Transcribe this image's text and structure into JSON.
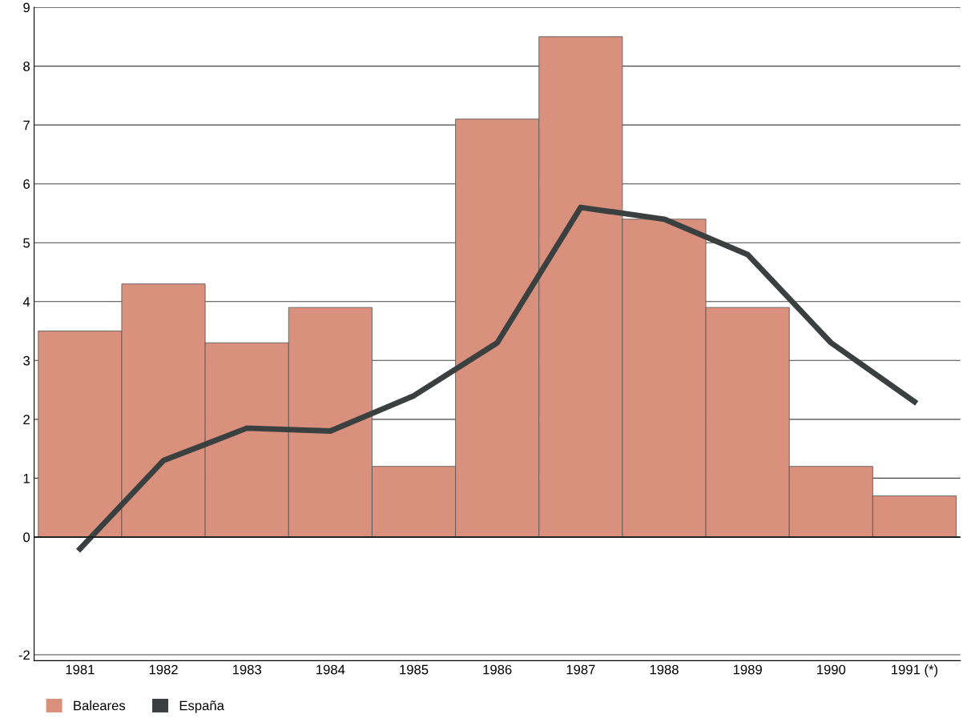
{
  "chart_data": {
    "type": "bar",
    "categories": [
      "1981",
      "1982",
      "1983",
      "1984",
      "1985",
      "1986",
      "1987",
      "1988",
      "1989",
      "1990",
      "1991 (*)"
    ],
    "series": [
      {
        "name": "Baleares",
        "color": "#d9907c",
        "values": [
          3.5,
          4.3,
          3.3,
          3.9,
          1.2,
          7.1,
          8.5,
          5.4,
          3.9,
          1.2,
          0.7
        ]
      },
      {
        "name": "España",
        "type": "line",
        "color": "#3a4040",
        "values": [
          -0.2,
          1.3,
          1.85,
          1.8,
          2.4,
          3.3,
          5.6,
          5.4,
          4.8,
          3.3,
          2.3
        ]
      }
    ],
    "ylim": [
      -2.1,
      9
    ],
    "yticks": [
      -2,
      0,
      1,
      2,
      3,
      4,
      5,
      6,
      7,
      8,
      9
    ],
    "grid": "y",
    "legend": "bottom left",
    "marker": "none",
    "line_style": "solid"
  }
}
